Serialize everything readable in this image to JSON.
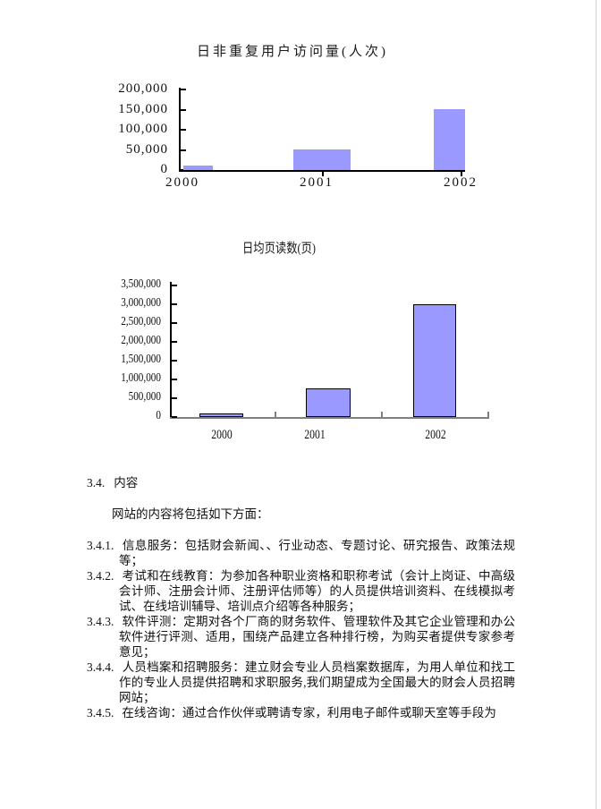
{
  "page": {
    "background": "#ffffff",
    "edge_line_color": "#d3d3d3"
  },
  "chart_data": [
    {
      "type": "bar",
      "title": "日非重复用户访问量(人次)",
      "categories": [
        "2000",
        "2001",
        "2002"
      ],
      "values": [
        10000,
        50000,
        150000
      ],
      "xlabel": "",
      "ylabel": "",
      "ylim": [
        0,
        200000
      ],
      "ytick_step": 50000,
      "yticklabels": [
        "0",
        "50,000",
        "100,000",
        "150,000",
        "200,000"
      ],
      "grid": false,
      "legend": false,
      "bar_color": "#9999ff",
      "axis_color": "#000000"
    },
    {
      "type": "bar",
      "title": "日均页读数(页)",
      "categories": [
        "2000",
        "2001",
        "2002"
      ],
      "values": [
        100000,
        750000,
        3000000
      ],
      "xlabel": "",
      "ylabel": "",
      "ylim": [
        0,
        3500000
      ],
      "ytick_step": 500000,
      "yticklabels": [
        "0",
        "500,000",
        "1,000,000",
        "1,500,000",
        "2,000,000",
        "2,500,000",
        "3,000,000",
        "3,500,000"
      ],
      "grid": false,
      "legend": false,
      "bar_color": "#9999ff",
      "bar_border_color": "#000000",
      "axis_color": "#000000",
      "x_axis_color": "#808080"
    }
  ],
  "content": {
    "heading_num": "3.4.",
    "heading_text": "内容",
    "intro": "网站的内容将包括如下方面：",
    "items": [
      {
        "num": "3.4.1.",
        "text": "信息服务：包括财会新闻、、行业动态、专题讨论、研究报告、政策法规等；"
      },
      {
        "num": "3.4.2.",
        "text": "考试和在线教育：为参加各种职业资格和职称考试（会计上岗证、中高级会计师、注册会计师、注册评估师等）的人员提供培训资料、在线模拟考试、在线培训辅导、培训点介绍等各种服务；"
      },
      {
        "num": "3.4.3.",
        "text": "软件评测：定期对各个厂商的财务软件、管理软件及其它企业管理和办公软件进行评测、适用，围绕产品建立各种排行榜，为购买者提供专家参考意见；"
      },
      {
        "num": "3.4.4.",
        "text": "人员档案和招聘服务：建立财会专业人员档案数据库，为用人单位和找工作的专业人员提供招聘和求职服务,我们期望成为全国最大的财会人员招聘网站；"
      },
      {
        "num": "3.4.5.",
        "text": "在线咨询：通过合作伙伴或聘请专家，利用电子邮件或聊天室等手段为"
      }
    ]
  }
}
